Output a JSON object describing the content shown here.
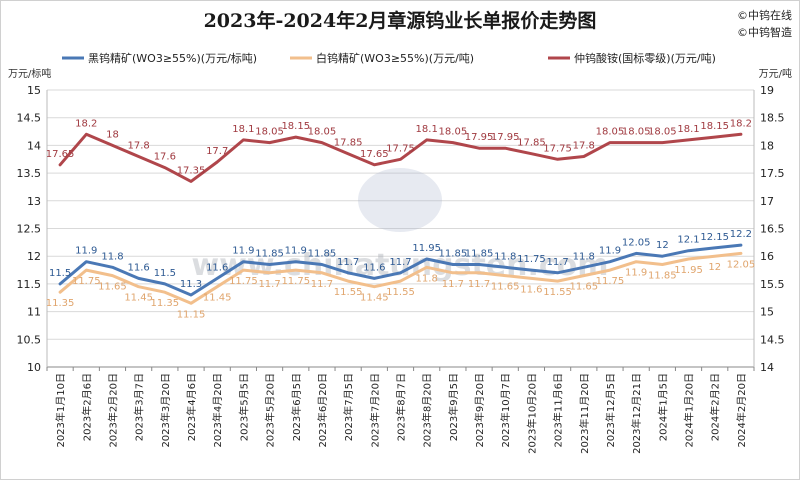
{
  "title": "2023年-2024年2月章源钨业长单报价走势图",
  "brand": [
    "©中钨在线",
    "©中钨智造"
  ],
  "watermark": "www.chinatungsten.com",
  "left_unit": "万元/标吨",
  "right_unit": "万元/吨",
  "colors": {
    "black": "#4a78b5",
    "white": "#f2bf8c",
    "apt": "#b0464b"
  },
  "chart_data": {
    "type": "line",
    "title": "2023年-2024年2月章源钨业长单报价走势图",
    "categories": [
      "2023年1月10日",
      "2023年2月6日",
      "2023年2月20日",
      "2023年3月7日",
      "2023年3月20日",
      "2023年4月6日",
      "2023年4月20日",
      "2023年5月5日",
      "2023年5月20日",
      "2023年6月5日",
      "2023年6月20日",
      "2023年7月5日",
      "2023年7月20日",
      "2023年8月7日",
      "2023年8月20日",
      "2023年9月5日",
      "2023年9月20日",
      "2023年10月7日",
      "2023年10月20日",
      "2023年11月6日",
      "2023年11月20日",
      "2023年12月5日",
      "2023年12月21日",
      "2024年1月5日",
      "2024年1月20日",
      "2024年2月2日",
      "2024年2月20日"
    ],
    "left_axis": {
      "min": 10,
      "max": 15,
      "step": 0.5
    },
    "right_axis": {
      "min": 14,
      "max": 19,
      "step": 0.5
    },
    "series": [
      {
        "name": "黑钨精矿(WO3≥55%)(万元/标吨)",
        "axis": "left",
        "color": "#4a78b5",
        "values": [
          11.5,
          11.9,
          11.8,
          11.6,
          11.5,
          11.3,
          11.6,
          11.9,
          11.85,
          11.9,
          11.85,
          11.7,
          11.6,
          11.7,
          11.95,
          11.85,
          11.85,
          11.8,
          11.75,
          11.7,
          11.8,
          11.9,
          12.05,
          12,
          12.1,
          12.15,
          12.2
        ]
      },
      {
        "name": "白钨精矿(WO3≥55%)(万元/吨)",
        "axis": "left",
        "color": "#f2bf8c",
        "values": [
          11.35,
          11.75,
          11.65,
          11.45,
          11.35,
          11.15,
          11.45,
          11.75,
          11.7,
          11.75,
          11.7,
          11.55,
          11.45,
          11.55,
          11.8,
          11.7,
          11.7,
          11.65,
          11.6,
          11.55,
          11.65,
          11.75,
          11.9,
          11.85,
          11.95,
          12,
          12.05
        ]
      },
      {
        "name": "仲钨酸铵(国标零级)(万元/吨)",
        "axis": "right",
        "color": "#b0464b",
        "values": [
          17.65,
          18.2,
          18,
          17.8,
          17.6,
          17.35,
          17.7,
          18.1,
          18.05,
          18.15,
          18.05,
          17.85,
          17.65,
          17.75,
          18.1,
          18.05,
          17.95,
          17.95,
          17.85,
          17.75,
          17.8,
          18.05,
          18.05,
          18.05,
          18.1,
          18.15,
          18.2
        ]
      }
    ]
  }
}
